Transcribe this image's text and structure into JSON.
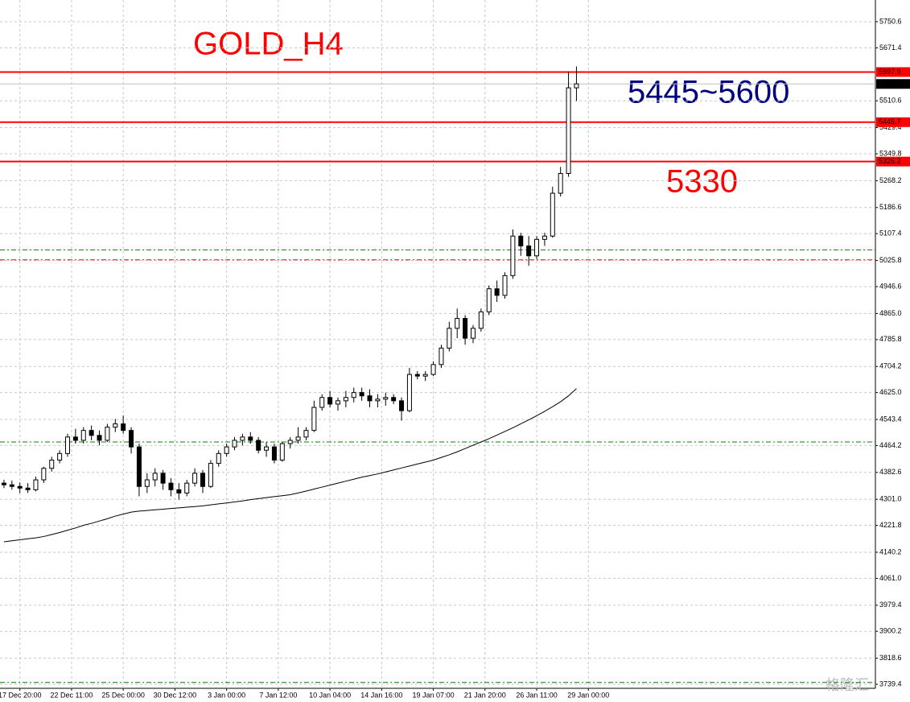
{
  "chart_data": {
    "type": "candlestick",
    "ylim": [
      3727.2,
      5816.6
    ],
    "yticks": [
      5750.6,
      5671.4,
      5510.6,
      5429.4,
      5349.8,
      5268.2,
      5186.6,
      5107.4,
      5025.8,
      4946.6,
      {
        "value": 4865,
        "label": "4865.0"
      },
      4785.8,
      4704.2,
      {
        "value": 4625,
        "label": "4625.0"
      },
      4543.4,
      4464.2,
      4382.6,
      {
        "value": 4301,
        "label": "4301.0"
      },
      4221.8,
      4140.2,
      {
        "value": 4061,
        "label": "4061.0"
      },
      3979.4,
      3900.2,
      3818.6,
      3739.4
    ],
    "xlim": [
      -0.5,
      109.6
    ],
    "xticks": [
      {
        "value": 2,
        "label": "17 Dec 20:00"
      },
      {
        "value": 8.5,
        "label": "22 Dec 11:00"
      },
      {
        "value": 15,
        "label": "25 Dec 00:00"
      },
      {
        "value": 21.5,
        "label": "30 Dec 12:00"
      },
      {
        "value": 28,
        "label": "3 Jan 00:00"
      },
      {
        "value": 34.5,
        "label": "7 Jan 12:00"
      },
      {
        "value": 41,
        "label": "10 Jan 04:00"
      },
      {
        "value": 47.5,
        "label": "14 Jan 16:00"
      },
      {
        "value": 54,
        "label": "19 Jan 07:00"
      },
      {
        "value": 60.5,
        "label": "21 Jan 20:00"
      },
      {
        "value": 67,
        "label": "26 Jan 11:00"
      },
      {
        "value": 73.5,
        "label": "29 Jan 00:00"
      }
    ],
    "grid": true,
    "open": [
      4350,
      4345,
      4340,
      4335,
      4330,
      4360,
      4395,
      4420,
      4440,
      4490,
      4480,
      4510,
      4495,
      4480,
      4520,
      4530,
      4510,
      4460,
      4340,
      4360,
      4380,
      4350,
      4330,
      4320,
      4350,
      4380,
      4340,
      4410,
      4440,
      4460,
      4480,
      4490,
      4480,
      4450,
      4460,
      4420,
      4470,
      4480,
      4490,
      4510,
      4580,
      4610,
      4590,
      4600,
      4610,
      4625,
      4615,
      4600,
      4605,
      4610,
      4600,
      4570,
      4680,
      4675,
      4680,
      4710,
      4760,
      4820,
      4850,
      4790,
      4820,
      4870,
      4940,
      4920,
      4980,
      5100,
      5070,
      5040,
      5090,
      5100,
      5230,
      5290,
      5550
    ],
    "high": [
      4360,
      4358,
      4352,
      4350,
      4370,
      4400,
      4430,
      4450,
      4500,
      4515,
      4520,
      4525,
      4510,
      4530,
      4545,
      4555,
      4520,
      4470,
      4380,
      4395,
      4390,
      4365,
      4350,
      4360,
      4395,
      4390,
      4420,
      4450,
      4470,
      4490,
      4500,
      4505,
      4490,
      4475,
      4470,
      4475,
      4490,
      4520,
      4520,
      4600,
      4620,
      4630,
      4610,
      4630,
      4640,
      4640,
      4635,
      4620,
      4625,
      4620,
      4610,
      4700,
      4690,
      4690,
      4720,
      4770,
      4840,
      4880,
      4860,
      4830,
      4880,
      4950,
      4965,
      4990,
      5120,
      5110,
      5100,
      5100,
      5110,
      5250,
      5310,
      5600,
      5615
    ],
    "low": [
      4335,
      4330,
      4320,
      4320,
      4325,
      4350,
      4385,
      4410,
      4430,
      4470,
      4470,
      4480,
      4465,
      4475,
      4505,
      4500,
      4440,
      4310,
      4320,
      4340,
      4330,
      4310,
      4300,
      4310,
      4340,
      4320,
      4335,
      4400,
      4430,
      4450,
      4465,
      4470,
      4440,
      4430,
      4410,
      4415,
      4455,
      4470,
      4480,
      4505,
      4570,
      4580,
      4570,
      4580,
      4595,
      4600,
      4580,
      4580,
      4585,
      4590,
      4540,
      4565,
      4665,
      4660,
      4675,
      4700,
      4750,
      4790,
      4770,
      4775,
      4810,
      4860,
      4900,
      4910,
      4970,
      5040,
      5010,
      5030,
      5070,
      5095,
      5220,
      5280,
      5510
    ],
    "close": [
      4345,
      4340,
      4335,
      4330,
      4360,
      4395,
      4420,
      4440,
      4490,
      4480,
      4510,
      4495,
      4480,
      4520,
      4530,
      4510,
      4460,
      4340,
      4360,
      4380,
      4350,
      4330,
      4320,
      4350,
      4380,
      4340,
      4410,
      4440,
      4460,
      4480,
      4490,
      4480,
      4450,
      4460,
      4420,
      4470,
      4480,
      4490,
      4510,
      4580,
      4610,
      4590,
      4600,
      4610,
      4625,
      4615,
      4600,
      4605,
      4610,
      4600,
      4570,
      4680,
      4675,
      4680,
      4710,
      4760,
      4820,
      4850,
      4790,
      4820,
      4870,
      4940,
      4920,
      4980,
      5100,
      5070,
      5040,
      5090,
      5100,
      5230,
      5290,
      5550,
      5562
    ],
    "ma": [
      4172,
      4175,
      4178,
      4181,
      4184,
      4188,
      4194,
      4200,
      4207,
      4214,
      4222,
      4228,
      4235,
      4242,
      4250,
      4256,
      4262,
      4265,
      4267,
      4269,
      4271,
      4273,
      4275,
      4277,
      4279,
      4281,
      4284,
      4287,
      4290,
      4293,
      4296,
      4300,
      4303,
      4306,
      4309,
      4312,
      4315,
      4320,
      4326,
      4332,
      4338,
      4344,
      4350,
      4356,
      4362,
      4368,
      4373,
      4378,
      4384,
      4390,
      4396,
      4402,
      4408,
      4414,
      4420,
      4428,
      4436,
      4445,
      4455,
      4465,
      4475,
      4485,
      4496,
      4507,
      4518,
      4530,
      4542,
      4555,
      4568,
      4582,
      4597,
      4615,
      4637
    ],
    "levels": [
      {
        "value": 5597.9,
        "color": "#ff0000",
        "style": "solid",
        "label_fill": "#ff0000"
      },
      {
        "value": 5561.8,
        "color": "#c0c0c0",
        "style": "thin",
        "label_fill": "#000000"
      },
      {
        "value": 5445.7,
        "color": "#ff0000",
        "style": "solid",
        "label_fill": "#ff0000"
      },
      {
        "value": 5326.2,
        "color": "#ff0000",
        "style": "solid",
        "label_fill": "#ff0000"
      },
      {
        "value": 5058,
        "color": "#008000",
        "style": "dashdot"
      },
      {
        "value": 5028,
        "color": "#ff0000",
        "style": "dashdot"
      },
      {
        "value": 4475,
        "color": "#008000",
        "style": "dashdot"
      },
      {
        "value": 3745,
        "color": "#008000",
        "style": "dashdot"
      }
    ],
    "annotations": [
      {
        "text": "GOLD_H4",
        "color": "#ff0000"
      },
      {
        "text": "5445~5600",
        "color": "#000080"
      },
      {
        "text": "5330",
        "color": "#ff0000"
      }
    ],
    "watermark": "格隆汇"
  }
}
